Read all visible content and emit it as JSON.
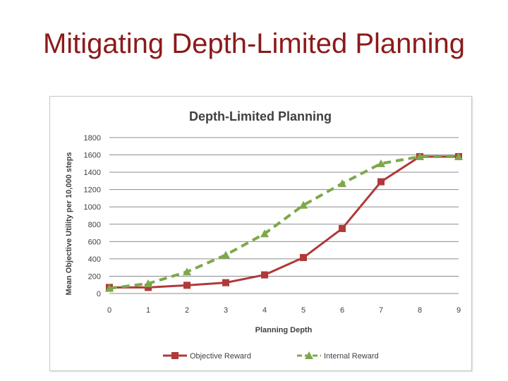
{
  "slide": {
    "title": "Mitigating Depth-Limited Planning"
  },
  "chart_data": {
    "type": "line",
    "title": "Depth-Limited Planning",
    "xlabel": "Planning Depth",
    "ylabel": "Mean Objective Utility per 10,000 steps",
    "x": [
      0,
      1,
      2,
      3,
      4,
      5,
      6,
      7,
      8,
      9
    ],
    "xlim": [
      0,
      9
    ],
    "ylim": [
      0,
      1800
    ],
    "yticks": [
      0,
      200,
      400,
      600,
      800,
      1000,
      1200,
      1400,
      1600,
      1800
    ],
    "grid": true,
    "legend_position": "bottom",
    "series": [
      {
        "name": "Objective Reward",
        "values": [
          70,
          70,
          95,
          125,
          215,
          415,
          750,
          1290,
          1580,
          1580
        ],
        "color": "#b0393a",
        "style": "solid",
        "marker": "square"
      },
      {
        "name": "Internal Reward",
        "values": [
          60,
          115,
          250,
          445,
          690,
          1020,
          1270,
          1500,
          1580,
          1580
        ],
        "color": "#7ea84a",
        "style": "dashed",
        "marker": "triangle"
      }
    ]
  }
}
